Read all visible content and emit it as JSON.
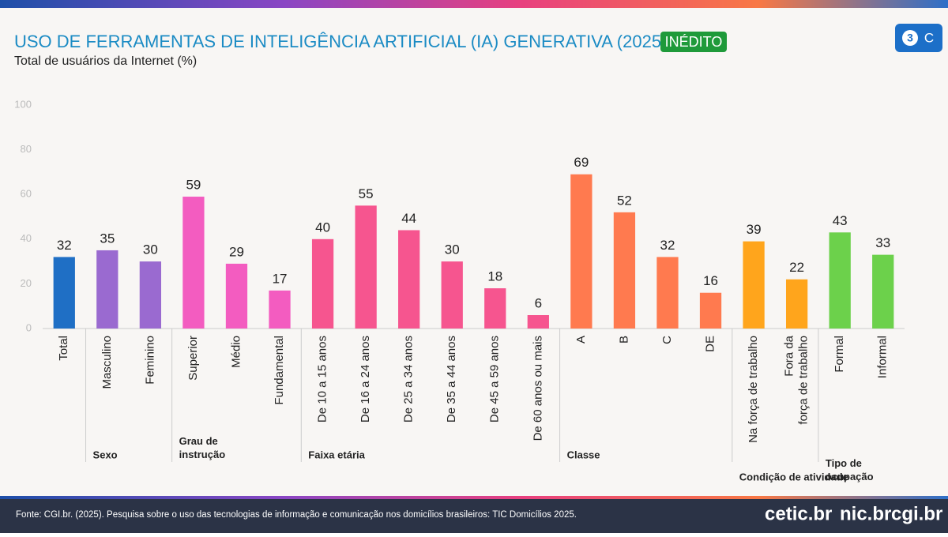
{
  "chart_data": {
    "type": "bar",
    "title": "USO DE FERRAMENTAS DE INTELIGÊNCIA ARTIFICIAL (IA) GENERATIVA (2025)",
    "badge": "INÉDITO",
    "subtitle": "Total de usuários da Internet (%)",
    "ylim": [
      0,
      100
    ],
    "yticks": [
      0,
      20,
      40,
      60,
      80,
      100
    ],
    "groups": [
      {
        "name": null,
        "color": "#1f6fc5",
        "categories": [
          "Total"
        ],
        "values": [
          32
        ]
      },
      {
        "name": "Sexo",
        "color": "#9a6ad0",
        "categories": [
          "Masculino",
          "Feminino"
        ],
        "values": [
          35,
          30
        ]
      },
      {
        "name": "Grau de\ninstrução",
        "color": "#f35cc0",
        "categories": [
          "Superior",
          "Médio",
          "Fundamental"
        ],
        "values": [
          59,
          29,
          17
        ]
      },
      {
        "name": "Faixa etária",
        "color": "#f6558f",
        "categories": [
          "De 10 a 15 anos",
          "De 16 a 24 anos",
          "De 25 a 34 anos",
          "De 35 a 44 anos",
          "De 45 a 59 anos",
          "De 60 anos ou mais"
        ],
        "values": [
          40,
          55,
          44,
          30,
          18,
          6
        ]
      },
      {
        "name": "Classe",
        "color": "#ff7a4f",
        "categories": [
          "A",
          "B",
          "C",
          "DE"
        ],
        "values": [
          69,
          52,
          32,
          16
        ]
      },
      {
        "name": "Condição de atividade",
        "color": "#ffa51c",
        "categories": [
          "Na força de trabalho",
          "Fora da\nforça de trabalho"
        ],
        "values": [
          39,
          22
        ]
      },
      {
        "name": "Tipo de\nocupação",
        "color": "#6cd14b",
        "categories": [
          "Formal",
          "Informal"
        ],
        "values": [
          43,
          33
        ]
      }
    ]
  },
  "footer": {
    "source": "Fonte: CGI.br. (2025). Pesquisa sobre o uso das tecnologias de informação e comunicação nos domicílios brasileiros: TIC Domicílios 2025.",
    "logos": [
      "cetic.br",
      "nic.br",
      "cgi.br"
    ]
  },
  "corner_icon": {
    "number": "3",
    "letter": "C"
  }
}
